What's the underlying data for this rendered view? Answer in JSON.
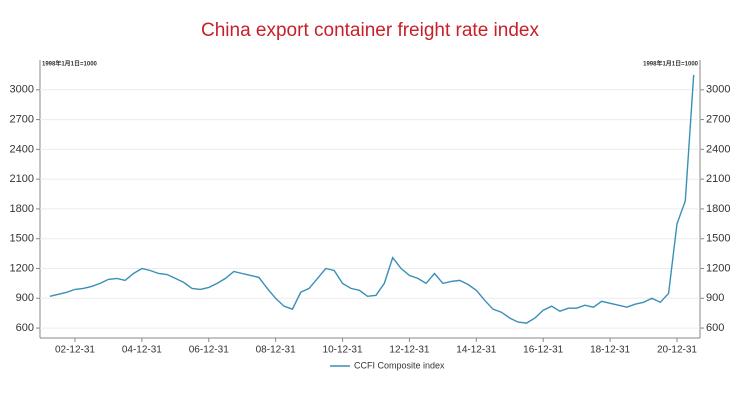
{
  "chart_data": {
    "type": "line",
    "title": "China export container freight rate index",
    "annotations": [
      "1998年1月1日=1000",
      "1998年1月1日=1000"
    ],
    "categories": [
      "02-03-31",
      "02-06-30",
      "02-09-30",
      "02-12-31",
      "03-03-31",
      "03-06-30",
      "03-09-30",
      "03-12-31",
      "04-03-31",
      "04-06-30",
      "04-09-30",
      "04-12-31",
      "05-03-31",
      "05-06-30",
      "05-09-30",
      "05-12-31",
      "06-03-31",
      "06-06-30",
      "06-09-30",
      "06-12-31",
      "07-03-31",
      "07-06-30",
      "07-09-30",
      "07-12-31",
      "08-03-31",
      "08-06-30",
      "08-09-30",
      "08-12-31",
      "09-03-31",
      "09-06-30",
      "09-09-30",
      "09-12-31",
      "10-03-31",
      "10-06-30",
      "10-09-30",
      "10-12-31",
      "11-03-31",
      "11-06-30",
      "11-09-30",
      "11-12-31",
      "12-03-31",
      "12-06-30",
      "12-09-30",
      "12-12-31",
      "13-03-31",
      "13-06-30",
      "13-09-30",
      "13-12-31",
      "14-03-31",
      "14-06-30",
      "14-09-30",
      "14-12-31",
      "15-03-31",
      "15-06-30",
      "15-09-30",
      "15-12-31",
      "16-03-31",
      "16-06-30",
      "16-09-30",
      "16-12-31",
      "17-03-31",
      "17-06-30",
      "17-09-30",
      "17-12-31",
      "18-03-31",
      "18-06-30",
      "18-09-30",
      "18-12-31",
      "19-03-31",
      "19-06-30",
      "19-09-30",
      "19-12-31",
      "20-03-31",
      "20-06-30",
      "20-09-30",
      "20-12-31",
      "21-03-31",
      "21-06-30"
    ],
    "series": [
      {
        "name": "CCFI Composite index",
        "color": "#3a8fb7",
        "values": [
          920,
          940,
          960,
          990,
          1000,
          1020,
          1050,
          1090,
          1100,
          1080,
          1150,
          1200,
          1180,
          1150,
          1140,
          1100,
          1060,
          1000,
          990,
          1010,
          1050,
          1100,
          1170,
          1150,
          1130,
          1110,
          1000,
          900,
          820,
          790,
          960,
          1000,
          1100,
          1200,
          1180,
          1050,
          1000,
          980,
          920,
          930,
          1050,
          1310,
          1200,
          1130,
          1100,
          1050,
          1150,
          1050,
          1070,
          1080,
          1040,
          980,
          880,
          790,
          760,
          700,
          660,
          650,
          700,
          780,
          820,
          770,
          800,
          800,
          830,
          810,
          870,
          850,
          830,
          810,
          840,
          860,
          900,
          860,
          950,
          1650,
          1880,
          3150
        ]
      }
    ],
    "xticks": [
      "02-12-31",
      "04-12-31",
      "06-12-31",
      "08-12-31",
      "10-12-31",
      "12-12-31",
      "14-12-31",
      "16-12-31",
      "18-12-31",
      "20-12-31"
    ],
    "ylim": [
      500,
      3300
    ],
    "yticks": [
      600,
      900,
      1200,
      1500,
      1800,
      2100,
      2400,
      2700,
      3000
    ],
    "y2lim": [
      500,
      3300
    ],
    "y2ticks": [
      600,
      900,
      1200,
      1500,
      1800,
      2100,
      2400,
      2700,
      3000
    ],
    "grid": true
  }
}
